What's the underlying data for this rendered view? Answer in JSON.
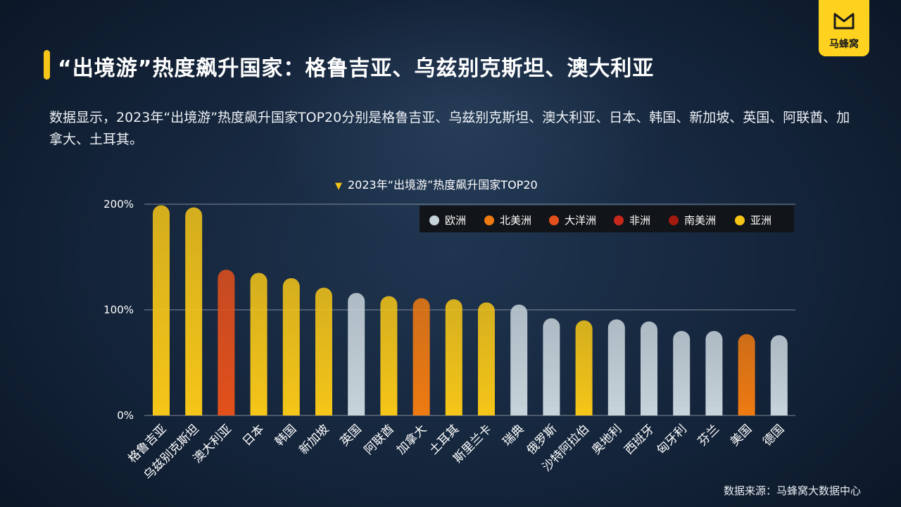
{
  "title": "“出境游”热度飙升国家：格鲁吉亚、乌兹别克斯坦、澳大利亚",
  "intro": "数据显示，2023年“出境游”热度飙升国家TOP20分别是格鲁吉亚、乌兹别克斯坦、澳大利亚、日本、韩国、新加坡、英国、阿联酋、加拿大、土耳其。",
  "logo_text": "马蜂窝",
  "source": "数据来源：马蜂窝大数据中心",
  "colors": {
    "欧洲": "#c7d3da",
    "北美洲": "#ee7a12",
    "大洋洲": "#e2501c",
    "非洲": "#c8281c",
    "南美洲": "#a31a10",
    "亚洲": "#f5c518"
  },
  "chart_data": {
    "type": "bar",
    "title": "2023年“出境游”热度飙升国家TOP20",
    "xlabel": "",
    "ylabel": "",
    "ylim": [
      0,
      200
    ],
    "yticks": [
      "0%",
      "100%",
      "200%"
    ],
    "legend": {
      "position": "top-right",
      "entries": [
        "欧洲",
        "北美洲",
        "大洋洲",
        "非洲",
        "南美洲",
        "亚洲"
      ]
    },
    "grid": "horizontal",
    "categories": [
      "格鲁吉亚",
      "乌兹别克斯坦",
      "澳大利亚",
      "日本",
      "韩国",
      "新加坡",
      "英国",
      "阿联酋",
      "加拿大",
      "土耳其",
      "斯里兰卡",
      "瑞典",
      "俄罗斯",
      "沙特阿拉伯",
      "奥地利",
      "西班牙",
      "匈牙利",
      "芬兰",
      "美国",
      "德国"
    ],
    "values": [
      199,
      197,
      138,
      135,
      130,
      121,
      116,
      113,
      111,
      110,
      107,
      105,
      92,
      90,
      91,
      89,
      80,
      80,
      77,
      76
    ],
    "regions": [
      "亚洲",
      "亚洲",
      "大洋洲",
      "亚洲",
      "亚洲",
      "亚洲",
      "欧洲",
      "亚洲",
      "北美洲",
      "亚洲",
      "亚洲",
      "欧洲",
      "欧洲",
      "亚洲",
      "欧洲",
      "欧洲",
      "欧洲",
      "欧洲",
      "北美洲",
      "欧洲"
    ]
  }
}
